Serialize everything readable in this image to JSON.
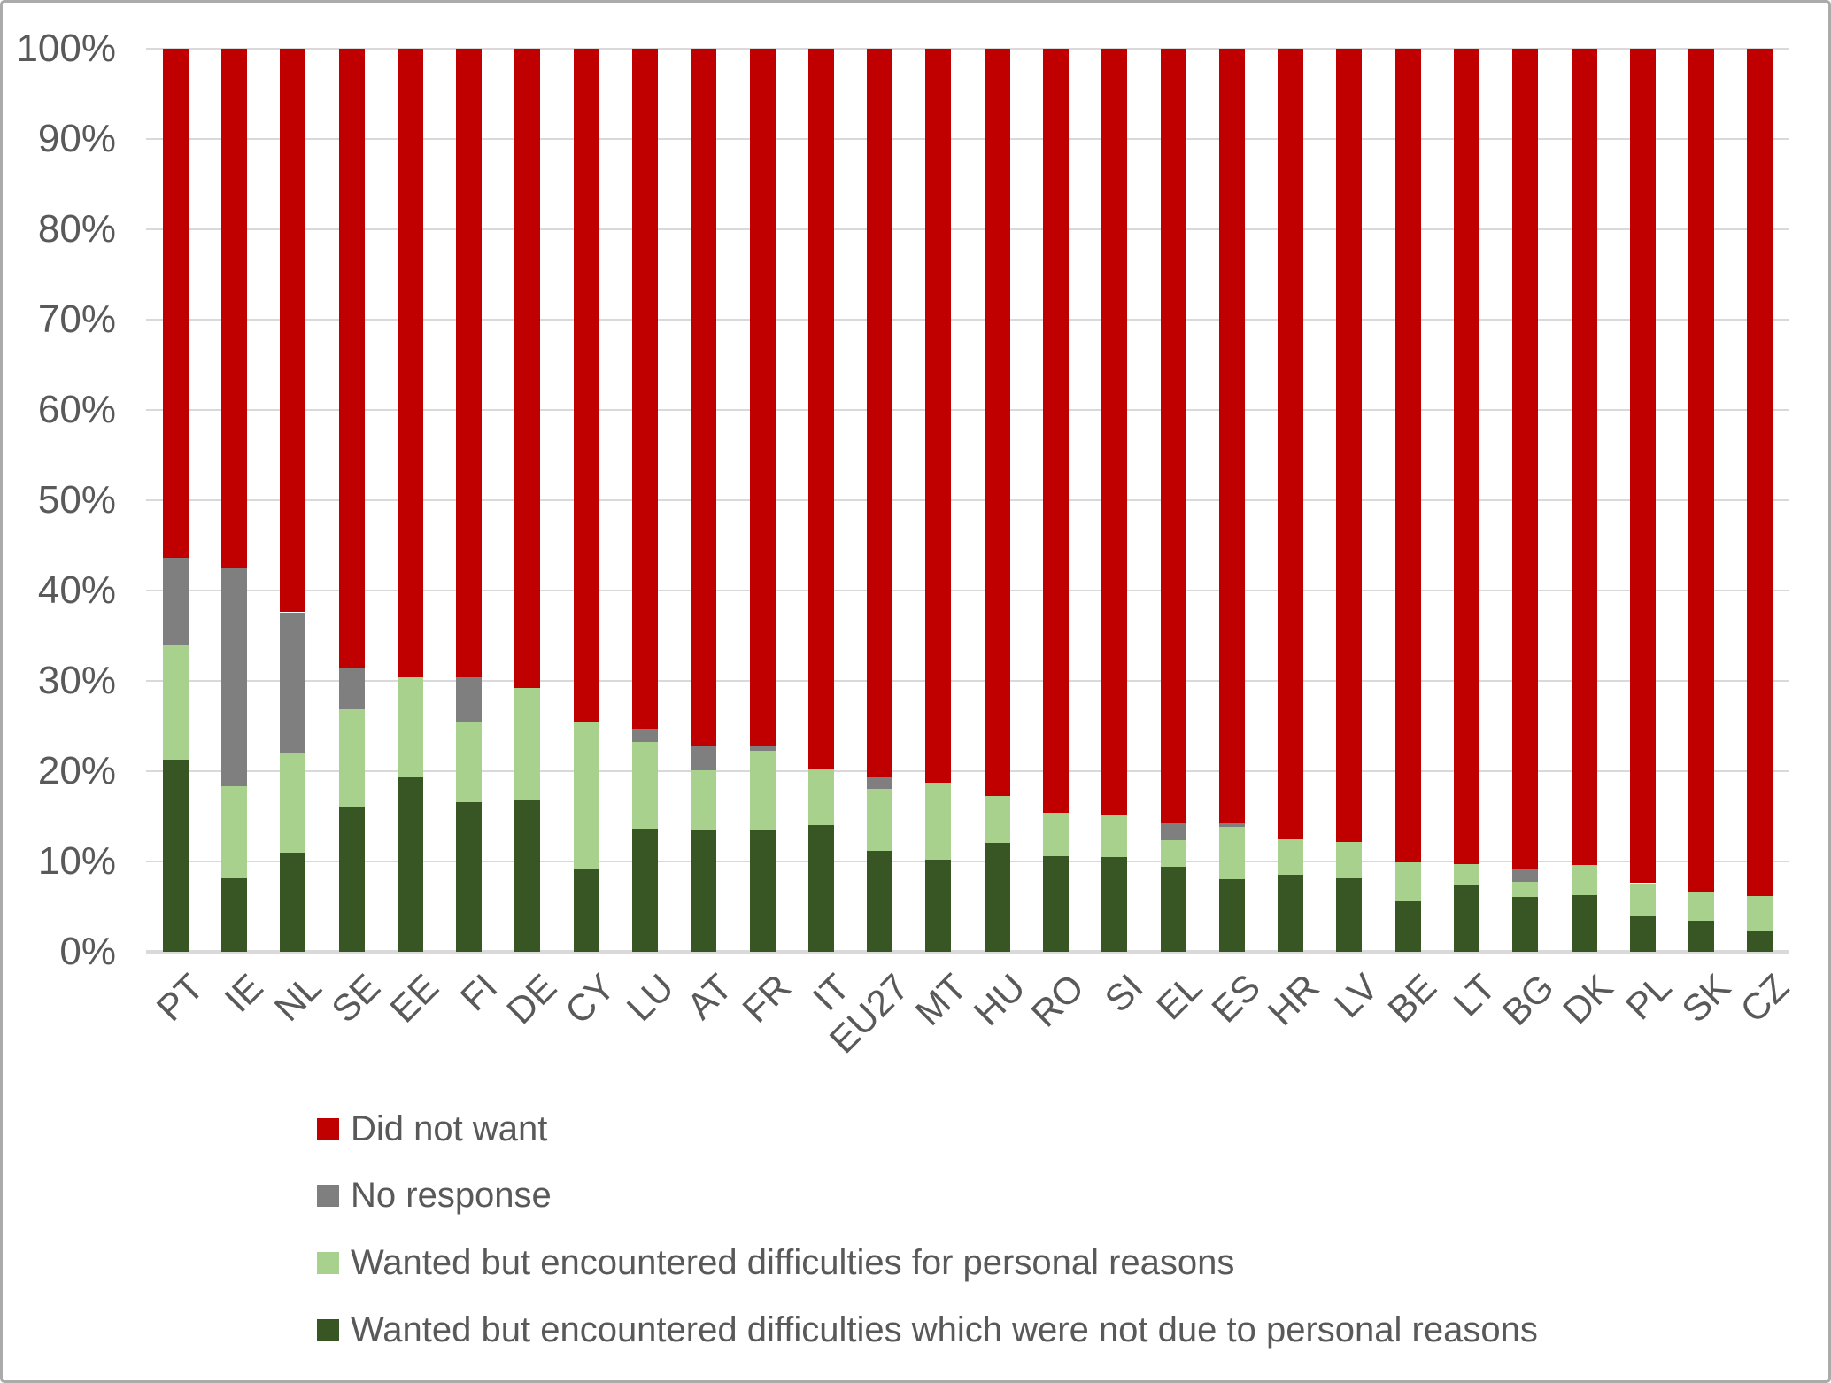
{
  "chart_data": {
    "type": "bar",
    "stacked": true,
    "percent_stacked": true,
    "title": "",
    "xlabel": "",
    "ylabel": "",
    "unit": "%",
    "ylim": [
      0,
      100
    ],
    "grid": true,
    "legend_position": "bottom-left",
    "categories": [
      "PT",
      "IE",
      "NL",
      "SE",
      "EE",
      "FI",
      "DE",
      "CY",
      "LU",
      "AT",
      "FR",
      "IT",
      "EU27",
      "MT",
      "HU",
      "RO",
      "SI",
      "EL",
      "ES",
      "HR",
      "LV",
      "BE",
      "LT",
      "BG",
      "DK",
      "PL",
      "SK",
      "CZ"
    ],
    "series": [
      {
        "name": "Wanted but encountered difficulties which were not due to personal reasons",
        "color": "#375623",
        "values": [
          21.3,
          8.1,
          11.0,
          16.0,
          19.3,
          16.6,
          16.8,
          9.1,
          13.6,
          13.5,
          13.5,
          14.0,
          11.2,
          10.2,
          12.1,
          10.6,
          10.5,
          9.4,
          8.0,
          8.5,
          8.1,
          5.6,
          7.4,
          6.1,
          6.3,
          3.9,
          3.4,
          2.4
        ]
      },
      {
        "name": "Wanted but encountered difficulties for personal reasons",
        "color": "#A9D18E",
        "values": [
          12.6,
          10.2,
          11.1,
          10.9,
          11.1,
          8.8,
          12.4,
          16.4,
          9.6,
          6.6,
          8.8,
          6.3,
          6.8,
          8.5,
          5.2,
          4.8,
          4.6,
          3.0,
          5.8,
          4.0,
          4.1,
          4.3,
          2.3,
          1.6,
          3.3,
          3.7,
          3.3,
          3.8
        ]
      },
      {
        "name": "No response",
        "color": "#7F7F7F",
        "values": [
          9.7,
          24.2,
          15.5,
          4.6,
          0,
          5.0,
          0,
          0,
          1.5,
          2.7,
          0.4,
          0,
          1.3,
          0,
          0,
          0,
          0,
          1.9,
          0.4,
          0,
          0,
          0,
          0,
          1.5,
          0,
          0,
          0,
          0
        ]
      },
      {
        "name": "Did not want",
        "color": "#C00000",
        "values": [
          56.4,
          57.5,
          62.4,
          68.5,
          69.6,
          69.6,
          70.8,
          74.5,
          75.3,
          77.2,
          77.3,
          79.7,
          80.7,
          81.3,
          82.7,
          84.6,
          84.9,
          85.7,
          85.8,
          87.5,
          87.8,
          90.1,
          90.3,
          90.8,
          90.4,
          92.4,
          93.3,
          93.8
        ]
      }
    ],
    "yticks": [
      {
        "value": 0,
        "label": "0%"
      },
      {
        "value": 10,
        "label": "10%"
      },
      {
        "value": 20,
        "label": "20%"
      },
      {
        "value": 30,
        "label": "30%"
      },
      {
        "value": 40,
        "label": "40%"
      },
      {
        "value": 50,
        "label": "50%"
      },
      {
        "value": 60,
        "label": "60%"
      },
      {
        "value": 70,
        "label": "70%"
      },
      {
        "value": 80,
        "label": "80%"
      },
      {
        "value": 90,
        "label": "90%"
      },
      {
        "value": 100,
        "label": "100%"
      }
    ]
  },
  "legend": {
    "items": [
      {
        "label": "Did not want",
        "color": "#C00000"
      },
      {
        "label": "No response",
        "color": "#7F7F7F"
      },
      {
        "label": "Wanted but encountered difficulties for personal reasons",
        "color": "#A9D18E"
      },
      {
        "label": "Wanted but encountered difficulties which were not due to personal reasons",
        "color": "#375623"
      }
    ]
  },
  "style_colors": {
    "gridline": "#D9D9D9",
    "axis_line": "#D9D9D9",
    "tick_text": "#595959",
    "outer_border": "#ABABAB",
    "background": "#FFFFFF"
  }
}
